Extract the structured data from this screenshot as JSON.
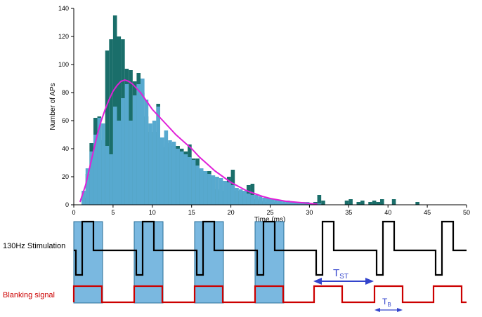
{
  "chart_data": {
    "type": "bar",
    "ylabel": "Number of APs",
    "xlabel": "Time (ms)",
    "xlim": [
      0,
      50
    ],
    "ylim": [
      0,
      140
    ],
    "x_ticks": [
      0,
      5,
      10,
      15,
      20,
      25,
      30,
      35,
      40,
      45,
      50
    ],
    "y_ticks": [
      0,
      20,
      40,
      60,
      80,
      100,
      120,
      140
    ],
    "bin_width": 0.5,
    "series": [
      {
        "color": "#1a6e6a",
        "x": [
          1,
          1.5,
          2,
          2.5,
          3,
          3.5,
          4,
          4.5,
          5,
          5.5,
          6,
          6.5,
          7,
          7.5,
          8,
          8.5,
          9,
          9.5,
          10,
          10.5,
          11,
          11.5,
          12,
          12.5,
          13,
          13.5,
          14,
          14.5,
          15,
          15.5,
          16,
          16.5,
          17,
          17.5,
          18,
          18.5,
          19,
          19.5,
          20,
          20.5,
          21,
          21.5,
          22,
          22.5,
          23,
          23.5,
          24,
          24.5,
          25,
          25.5,
          26,
          26.5,
          27,
          27.5,
          28,
          28.5,
          29,
          29.5,
          30,
          30.5,
          31,
          31.5,
          34.5,
          35,
          36,
          36.5,
          37.5,
          38,
          38.5,
          39,
          40.5,
          43.5
        ],
        "values": [
          5,
          22,
          44,
          62,
          63,
          46,
          110,
          118,
          135,
          120,
          118,
          97,
          96,
          88,
          94,
          80,
          63,
          52,
          52,
          72,
          43,
          41,
          44,
          42,
          42,
          40,
          38,
          43,
          33,
          33,
          25,
          22,
          24,
          20,
          11,
          10,
          17,
          20,
          25,
          10,
          10,
          6,
          14,
          15,
          4,
          3,
          2,
          1,
          2,
          2,
          1,
          1,
          1,
          1,
          1,
          1,
          1,
          0,
          1,
          2,
          7,
          3,
          3,
          4,
          2,
          3,
          2,
          3,
          2,
          4,
          4,
          2
        ]
      },
      {
        "color": "#57a9cf",
        "x": [
          1,
          1.5,
          2,
          2.5,
          3,
          3.5,
          4,
          4.5,
          5,
          5.5,
          6,
          6.5,
          7,
          7.5,
          8,
          8.5,
          9,
          9.5,
          10,
          10.5,
          11,
          11.5,
          12,
          12.5,
          13,
          13.5,
          14,
          14.5,
          15,
          15.5,
          16,
          16.5,
          17,
          17.5,
          18,
          18.5,
          19,
          19.5,
          20,
          20.5,
          21,
          21.5,
          22,
          22.5,
          23,
          23.5,
          24,
          24.5,
          25,
          25.5,
          26,
          26.5,
          27,
          27.5,
          28,
          28.5,
          29,
          29.5,
          30,
          30.5,
          31
        ],
        "values": [
          10,
          26,
          38,
          50,
          62,
          58,
          42,
          36,
          70,
          60,
          76,
          86,
          60,
          78,
          86,
          90,
          75,
          58,
          60,
          70,
          48,
          53,
          46,
          45,
          40,
          38,
          36,
          34,
          32,
          28,
          26,
          24,
          22,
          21,
          20,
          19,
          17,
          16,
          14,
          12,
          11,
          10,
          8,
          7,
          7,
          6,
          5,
          5,
          4,
          4,
          3,
          3,
          3,
          2,
          2,
          2,
          2,
          2,
          1,
          1,
          1
        ]
      },
      {
        "type": "line",
        "color": "#e020d8",
        "x": [
          0.8,
          1.5,
          2,
          2.5,
          3,
          3.5,
          4,
          4.5,
          5,
          5.5,
          6,
          6.5,
          7,
          7.5,
          8,
          8.5,
          9,
          9.5,
          10,
          11,
          12,
          13,
          14,
          15,
          16,
          17,
          18,
          19,
          20,
          21,
          22,
          23,
          24,
          25,
          26,
          27,
          28,
          29,
          30,
          31
        ],
        "values": [
          2,
          14,
          26,
          38,
          50,
          60,
          68,
          75,
          81,
          85,
          88,
          89,
          88,
          86,
          83,
          80,
          76,
          72,
          68,
          62,
          56,
          50,
          45,
          40,
          34,
          29,
          24,
          20,
          16,
          13,
          10,
          8,
          6,
          4.5,
          3.5,
          2.5,
          2,
          1.5,
          1,
          0.5
        ]
      }
    ]
  },
  "lower_diagram": {
    "stim_label": "130Hz Stimulation",
    "blank_label": "Blanking signal",
    "tst_label": "T",
    "tst_sub": "ST",
    "tb_label": "T",
    "tb_sub": "B",
    "colors": {
      "stim_line": "#000000",
      "blank_line": "#cc0000",
      "shade": "#7ab8e0",
      "arrow": "#3344cc"
    }
  }
}
